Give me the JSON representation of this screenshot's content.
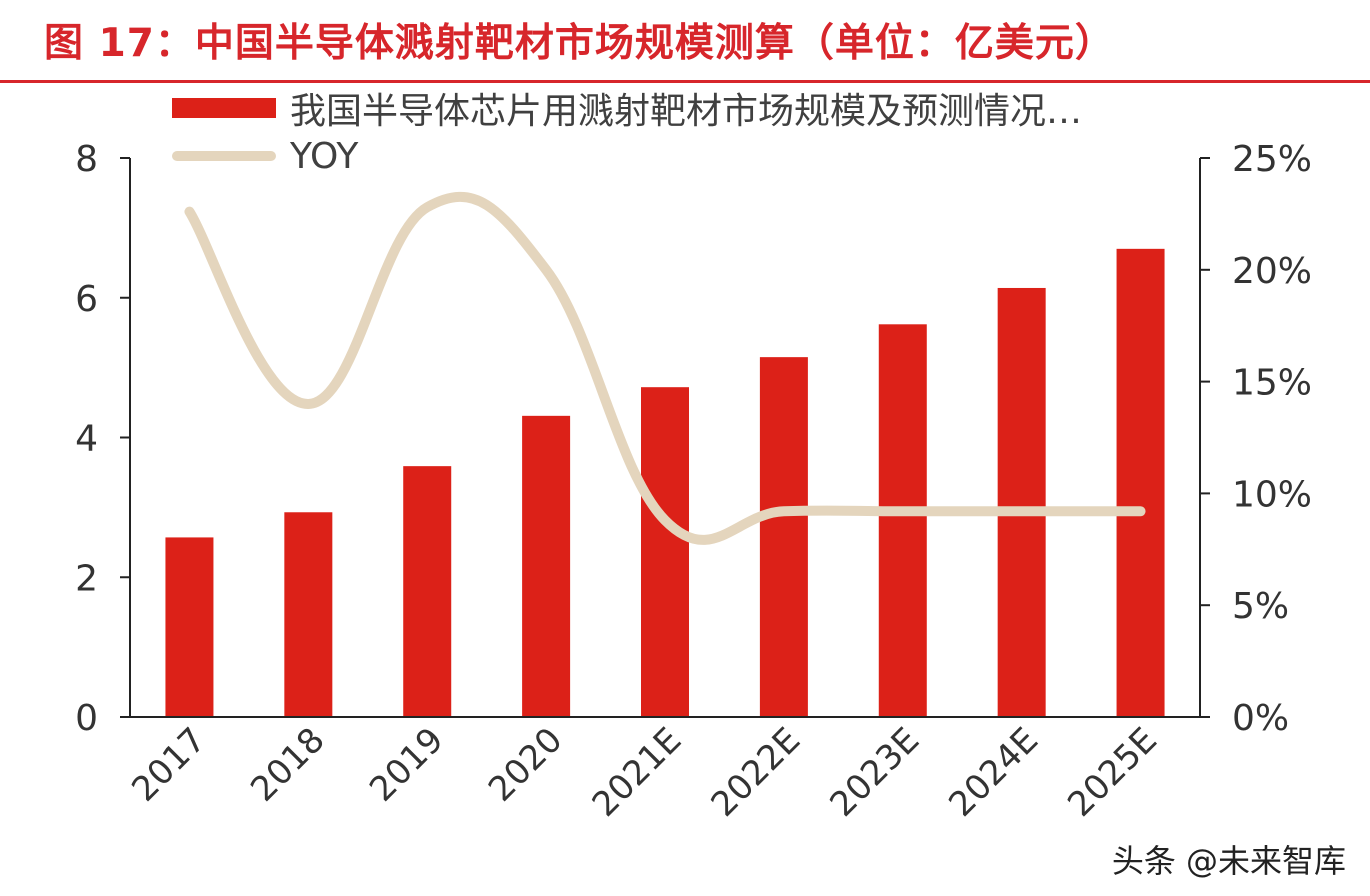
{
  "page": {
    "title": "图 17：中国半导体溅射靶材市场规模测算（单位：亿美元）",
    "watermark": "头条 @未来智库"
  },
  "colors": {
    "bar": "#dc2118",
    "yoy_line": "#e4d5bd",
    "title": "#d7262b",
    "axis": "#222222"
  },
  "chart_data": {
    "type": "bar",
    "title": "图 17：中国半导体溅射靶材市场规模测算（单位：亿美元）",
    "categories": [
      "2017",
      "2018",
      "2019",
      "2020",
      "2021E",
      "2022E",
      "2023E",
      "2024E",
      "2025E"
    ],
    "series": [
      {
        "name": "我国半导体芯片用溅射靶材市场规模及预测情况…",
        "type": "bar",
        "axis": "left",
        "values": [
          2.57,
          2.93,
          3.59,
          4.31,
          4.72,
          5.15,
          5.62,
          6.14,
          6.7
        ]
      },
      {
        "name": "YOY",
        "type": "line",
        "axis": "right",
        "values": [
          0.226,
          0.14,
          0.228,
          0.2,
          0.088,
          0.092,
          0.092,
          0.092,
          0.092
        ]
      }
    ],
    "y_left": {
      "range": [
        0,
        8
      ],
      "ticks": [
        "0",
        "2",
        "4",
        "6",
        "8"
      ],
      "tick_values": [
        0,
        2,
        4,
        6,
        8
      ]
    },
    "y_right": {
      "range": [
        0,
        0.25
      ],
      "ticks": [
        "0%",
        "5%",
        "10%",
        "15%",
        "20%",
        "25%"
      ],
      "tick_values": [
        0,
        0.05,
        0.1,
        0.15,
        0.2,
        0.25
      ]
    },
    "legend": "top-left",
    "grid": false,
    "xlabel": "",
    "ylabel": ""
  }
}
